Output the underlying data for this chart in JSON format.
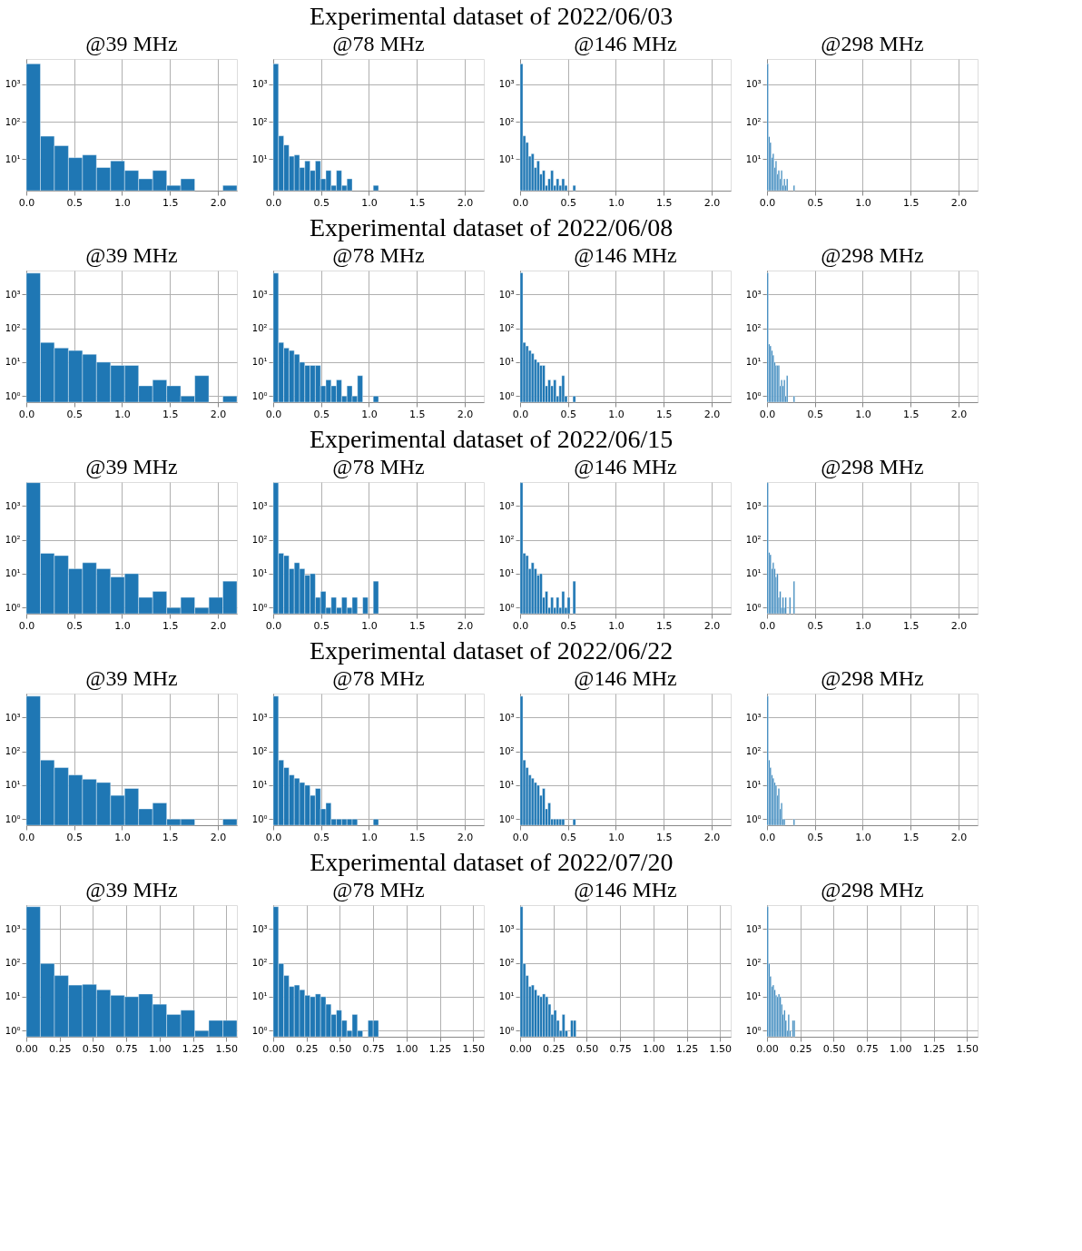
{
  "chart_data": [
    {
      "type": "histogram",
      "title": "@39 MHz",
      "annotations": [
        "Experimental dataset of 2022/06/03"
      ],
      "color": "#1f77b4",
      "log": true,
      "grid": true,
      "xlim": [
        0,
        2.2
      ],
      "ylim": [
        1.45,
        4700
      ],
      "xticks": [
        {
          "value": 0,
          "label": "0.0"
        },
        {
          "value": 0.5,
          "label": "0.5"
        },
        {
          "value": 1,
          "label": "1.0"
        },
        {
          "value": 1.5,
          "label": "1.5"
        },
        {
          "value": 2,
          "label": "2.0"
        }
      ],
      "yticks": [
        {
          "value": 10,
          "label": "10¹"
        },
        {
          "value": 100,
          "label": "10²"
        },
        {
          "value": 1000,
          "label": "10³"
        }
      ],
      "bins": [
        0,
        0.147,
        0.293,
        0.44,
        0.587,
        0.733,
        0.88,
        1.027,
        1.173,
        1.32,
        1.467,
        1.613,
        1.76,
        1.907,
        2.053,
        2.2
      ],
      "values": [
        3500,
        41,
        23,
        11,
        13,
        6,
        9,
        5,
        3,
        5,
        2,
        3,
        null,
        null,
        2
      ]
    },
    {
      "type": "histogram",
      "title": "@78 MHz",
      "color": "#1f77b4",
      "log": true,
      "grid": true,
      "xlim": [
        0,
        2.2
      ],
      "ylim": [
        1.45,
        4700
      ],
      "xticks": [
        {
          "value": 0,
          "label": "0.0"
        },
        {
          "value": 0.5,
          "label": "0.5"
        },
        {
          "value": 1,
          "label": "1.0"
        },
        {
          "value": 1.5,
          "label": "1.5"
        },
        {
          "value": 2,
          "label": "2.0"
        }
      ],
      "yticks": [
        {
          "value": 10,
          "label": "10¹"
        },
        {
          "value": 100,
          "label": "10²"
        },
        {
          "value": 1000,
          "label": "10³"
        }
      ],
      "bins": [
        0,
        0.055,
        0.11,
        0.165,
        0.22,
        0.275,
        0.33,
        0.385,
        0.44,
        0.495,
        0.55,
        0.605,
        0.66,
        0.715,
        0.77,
        0.825,
        0.88,
        0.935,
        0.99,
        1.045,
        1.1
      ],
      "values": [
        3500,
        42,
        24,
        12,
        13,
        6,
        9,
        5,
        9,
        3,
        5,
        2,
        5,
        2,
        3,
        null,
        null,
        null,
        null,
        2
      ]
    },
    {
      "type": "histogram",
      "title": "@146 MHz",
      "color": "#1f77b4",
      "log": true,
      "grid": true,
      "xlim": [
        0,
        2.2
      ],
      "ylim": [
        1.45,
        4700
      ],
      "xticks": [
        {
          "value": 0,
          "label": "0.0"
        },
        {
          "value": 0.5,
          "label": "0.5"
        },
        {
          "value": 1,
          "label": "1.0"
        },
        {
          "value": 1.5,
          "label": "1.5"
        },
        {
          "value": 2,
          "label": "2.0"
        }
      ],
      "yticks": [
        {
          "value": 10,
          "label": "10¹"
        },
        {
          "value": 100,
          "label": "10²"
        },
        {
          "value": 1000,
          "label": "10³"
        }
      ],
      "bins": [
        0,
        0.029,
        0.058,
        0.087,
        0.116,
        0.145,
        0.174,
        0.203,
        0.232,
        0.261,
        0.29,
        0.319,
        0.348,
        0.377,
        0.406,
        0.435,
        0.464,
        0.493,
        0.522,
        0.551,
        0.58
      ],
      "values": [
        3500,
        42,
        28,
        12,
        14,
        6,
        9,
        4,
        5,
        2,
        3,
        5,
        2,
        3,
        2,
        3,
        2,
        null,
        null,
        2
      ]
    },
    {
      "type": "histogram",
      "title": "@298 MHz",
      "color": "#1f77b4",
      "log": true,
      "grid": true,
      "xlim": [
        0,
        2.2
      ],
      "ylim": [
        1.45,
        4700
      ],
      "xticks": [
        {
          "value": 0,
          "label": "0.0"
        },
        {
          "value": 0.5,
          "label": "0.5"
        },
        {
          "value": 1,
          "label": "1.0"
        },
        {
          "value": 1.5,
          "label": "1.5"
        },
        {
          "value": 2,
          "label": "2.0"
        }
      ],
      "yticks": [
        {
          "value": 10,
          "label": "10¹"
        },
        {
          "value": 100,
          "label": "10²"
        },
        {
          "value": 1000,
          "label": "10³"
        }
      ],
      "bins": [
        0,
        0.0145,
        0.029,
        0.0435,
        0.058,
        0.0725,
        0.087,
        0.1015,
        0.116,
        0.1305,
        0.145,
        0.1595,
        0.174,
        0.1885,
        0.203,
        0.2175,
        0.232,
        0.2465,
        0.261,
        0.2755,
        0.29
      ],
      "values": [
        3500,
        40,
        28,
        11,
        14,
        6,
        9,
        4,
        5,
        3,
        5,
        2,
        3,
        2,
        3,
        null,
        null,
        null,
        null,
        2
      ]
    },
    {
      "type": "histogram",
      "title": "@39 MHz",
      "annotations": [
        "Experimental dataset of 2022/06/08"
      ],
      "color": "#1f77b4",
      "log": true,
      "grid": true,
      "xlim": [
        0,
        2.2
      ],
      "ylim": [
        0.66,
        5000
      ],
      "xticks": [
        {
          "value": 0,
          "label": "0.0"
        },
        {
          "value": 0.5,
          "label": "0.5"
        },
        {
          "value": 1,
          "label": "1.0"
        },
        {
          "value": 1.5,
          "label": "1.5"
        },
        {
          "value": 2,
          "label": "2.0"
        }
      ],
      "yticks": [
        {
          "value": 1,
          "label": "10⁰"
        },
        {
          "value": 10,
          "label": "10¹"
        },
        {
          "value": 100,
          "label": "10²"
        },
        {
          "value": 1000,
          "label": "10³"
        }
      ],
      "bins": [
        0,
        0.147,
        0.293,
        0.44,
        0.587,
        0.733,
        0.88,
        1.027,
        1.173,
        1.32,
        1.467,
        1.613,
        1.76,
        1.907,
        2.053,
        2.2
      ],
      "values": [
        4200,
        38,
        26,
        22,
        17,
        10,
        8,
        8,
        2,
        3,
        2,
        1,
        4,
        null,
        1
      ]
    },
    {
      "type": "histogram",
      "title": "@78 MHz",
      "color": "#1f77b4",
      "log": true,
      "grid": true,
      "xlim": [
        0,
        2.2
      ],
      "ylim": [
        0.66,
        5000
      ],
      "xticks": [
        {
          "value": 0,
          "label": "0.0"
        },
        {
          "value": 0.5,
          "label": "0.5"
        },
        {
          "value": 1,
          "label": "1.0"
        },
        {
          "value": 1.5,
          "label": "1.5"
        },
        {
          "value": 2,
          "label": "2.0"
        }
      ],
      "yticks": [
        {
          "value": 1,
          "label": "10⁰"
        },
        {
          "value": 10,
          "label": "10¹"
        },
        {
          "value": 100,
          "label": "10²"
        },
        {
          "value": 1000,
          "label": "10³"
        }
      ],
      "bins": [
        0,
        0.055,
        0.11,
        0.165,
        0.22,
        0.275,
        0.33,
        0.385,
        0.44,
        0.495,
        0.55,
        0.605,
        0.66,
        0.715,
        0.77,
        0.825,
        0.88,
        0.935,
        0.99,
        1.045,
        1.1
      ],
      "values": [
        4200,
        38,
        26,
        22,
        17,
        10,
        8,
        8,
        8,
        2,
        3,
        2,
        3,
        1,
        2,
        1,
        4,
        null,
        null,
        1
      ]
    },
    {
      "type": "histogram",
      "title": "@146 MHz",
      "color": "#1f77b4",
      "log": true,
      "grid": true,
      "xlim": [
        0,
        2.2
      ],
      "ylim": [
        0.66,
        5000
      ],
      "xticks": [
        {
          "value": 0,
          "label": "0.0"
        },
        {
          "value": 0.5,
          "label": "0.5"
        },
        {
          "value": 1,
          "label": "1.0"
        },
        {
          "value": 1.5,
          "label": "1.5"
        },
        {
          "value": 2,
          "label": "2.0"
        }
      ],
      "yticks": [
        {
          "value": 1,
          "label": "10⁰"
        },
        {
          "value": 10,
          "label": "10¹"
        },
        {
          "value": 100,
          "label": "10²"
        },
        {
          "value": 1000,
          "label": "10³"
        }
      ],
      "bins": [
        0,
        0.029,
        0.058,
        0.087,
        0.116,
        0.145,
        0.174,
        0.203,
        0.232,
        0.261,
        0.29,
        0.319,
        0.348,
        0.377,
        0.406,
        0.435,
        0.464,
        0.493,
        0.522,
        0.551,
        0.58
      ],
      "values": [
        4300,
        38,
        30,
        22,
        18,
        12,
        10,
        8,
        8,
        2,
        3,
        2,
        3,
        1,
        2,
        4,
        1,
        null,
        null,
        1
      ]
    },
    {
      "type": "histogram",
      "title": "@298 MHz",
      "color": "#1f77b4",
      "log": true,
      "grid": true,
      "xlim": [
        0,
        2.2
      ],
      "ylim": [
        0.66,
        5000
      ],
      "xticks": [
        {
          "value": 0,
          "label": "0.0"
        },
        {
          "value": 0.5,
          "label": "0.5"
        },
        {
          "value": 1,
          "label": "1.0"
        },
        {
          "value": 1.5,
          "label": "1.5"
        },
        {
          "value": 2,
          "label": "2.0"
        }
      ],
      "yticks": [
        {
          "value": 1,
          "label": "10⁰"
        },
        {
          "value": 10,
          "label": "10¹"
        },
        {
          "value": 100,
          "label": "10²"
        },
        {
          "value": 1000,
          "label": "10³"
        }
      ],
      "bins": [
        0,
        0.0145,
        0.029,
        0.0435,
        0.058,
        0.0725,
        0.087,
        0.1015,
        0.116,
        0.1305,
        0.145,
        0.1595,
        0.174,
        0.1885,
        0.203,
        0.2175,
        0.232,
        0.2465,
        0.261,
        0.2755,
        0.29
      ],
      "values": [
        4300,
        34,
        30,
        22,
        16,
        10,
        8,
        8,
        8,
        2,
        3,
        2,
        3,
        1,
        4,
        null,
        null,
        null,
        null,
        1
      ]
    },
    {
      "type": "histogram",
      "title": "@39 MHz",
      "annotations": [
        "Experimental dataset of 2022/06/15"
      ],
      "color": "#1f77b4",
      "log": true,
      "grid": true,
      "xlim": [
        0,
        2.2
      ],
      "ylim": [
        0.66,
        5000
      ],
      "xticks": [
        {
          "value": 0,
          "label": "0.0"
        },
        {
          "value": 0.5,
          "label": "0.5"
        },
        {
          "value": 1,
          "label": "1.0"
        },
        {
          "value": 1.5,
          "label": "1.5"
        },
        {
          "value": 2,
          "label": "2.0"
        }
      ],
      "yticks": [
        {
          "value": 1,
          "label": "10⁰"
        },
        {
          "value": 10,
          "label": "10¹"
        },
        {
          "value": 100,
          "label": "10²"
        },
        {
          "value": 1000,
          "label": "10³"
        }
      ],
      "bins": [
        0,
        0.147,
        0.293,
        0.44,
        0.587,
        0.733,
        0.88,
        1.027,
        1.173,
        1.32,
        1.467,
        1.613,
        1.76,
        1.907,
        2.053,
        2.2
      ],
      "values": [
        4800,
        40,
        34,
        14,
        21,
        14,
        8,
        10,
        2,
        3,
        1,
        2,
        1,
        2,
        6
      ]
    },
    {
      "type": "histogram",
      "title": "@78 MHz",
      "color": "#1f77b4",
      "log": true,
      "grid": true,
      "xlim": [
        0,
        2.2
      ],
      "ylim": [
        0.66,
        5000
      ],
      "xticks": [
        {
          "value": 0,
          "label": "0.0"
        },
        {
          "value": 0.5,
          "label": "0.5"
        },
        {
          "value": 1,
          "label": "1.0"
        },
        {
          "value": 1.5,
          "label": "1.5"
        },
        {
          "value": 2,
          "label": "2.0"
        }
      ],
      "yticks": [
        {
          "value": 1,
          "label": "10⁰"
        },
        {
          "value": 10,
          "label": "10¹"
        },
        {
          "value": 100,
          "label": "10²"
        },
        {
          "value": 1000,
          "label": "10³"
        }
      ],
      "bins": [
        0,
        0.055,
        0.11,
        0.165,
        0.22,
        0.275,
        0.33,
        0.385,
        0.44,
        0.495,
        0.55,
        0.605,
        0.66,
        0.715,
        0.77,
        0.825,
        0.88,
        0.935,
        0.99,
        1.045,
        1.1
      ],
      "values": [
        4800,
        40,
        34,
        14,
        21,
        14,
        9,
        10,
        2,
        3,
        1,
        2,
        1,
        2,
        1,
        2,
        null,
        2,
        null,
        6
      ]
    },
    {
      "type": "histogram",
      "title": "@146 MHz",
      "color": "#1f77b4",
      "log": true,
      "grid": true,
      "xlim": [
        0,
        2.2
      ],
      "ylim": [
        0.66,
        5000
      ],
      "xticks": [
        {
          "value": 0,
          "label": "0.0"
        },
        {
          "value": 0.5,
          "label": "0.5"
        },
        {
          "value": 1,
          "label": "1.0"
        },
        {
          "value": 1.5,
          "label": "1.5"
        },
        {
          "value": 2,
          "label": "2.0"
        }
      ],
      "yticks": [
        {
          "value": 1,
          "label": "10⁰"
        },
        {
          "value": 10,
          "label": "10¹"
        },
        {
          "value": 100,
          "label": "10²"
        },
        {
          "value": 1000,
          "label": "10³"
        }
      ],
      "bins": [
        0,
        0.029,
        0.058,
        0.087,
        0.116,
        0.145,
        0.174,
        0.203,
        0.232,
        0.261,
        0.29,
        0.319,
        0.348,
        0.377,
        0.406,
        0.435,
        0.464,
        0.493,
        0.522,
        0.551,
        0.58
      ],
      "values": [
        4800,
        40,
        34,
        14,
        21,
        14,
        9,
        10,
        2,
        3,
        1,
        2,
        1,
        2,
        1,
        3,
        1,
        2,
        null,
        6
      ]
    },
    {
      "type": "histogram",
      "title": "@298 MHz",
      "color": "#1f77b4",
      "log": true,
      "grid": true,
      "xlim": [
        0,
        2.2
      ],
      "ylim": [
        0.66,
        5000
      ],
      "xticks": [
        {
          "value": 0,
          "label": "0.0"
        },
        {
          "value": 0.5,
          "label": "0.5"
        },
        {
          "value": 1,
          "label": "1.0"
        },
        {
          "value": 1.5,
          "label": "1.5"
        },
        {
          "value": 2,
          "label": "2.0"
        }
      ],
      "yticks": [
        {
          "value": 1,
          "label": "10⁰"
        },
        {
          "value": 10,
          "label": "10¹"
        },
        {
          "value": 100,
          "label": "10²"
        },
        {
          "value": 1000,
          "label": "10³"
        }
      ],
      "bins": [
        0,
        0.0145,
        0.029,
        0.0435,
        0.058,
        0.0725,
        0.087,
        0.1015,
        0.116,
        0.1305,
        0.145,
        0.1595,
        0.174,
        0.1885,
        0.203,
        0.2175,
        0.232,
        0.2465,
        0.261,
        0.2755,
        0.29
      ],
      "values": [
        4800,
        42,
        36,
        14,
        21,
        14,
        8,
        10,
        2,
        3,
        1,
        2,
        1,
        2,
        null,
        null,
        2,
        null,
        null,
        6
      ]
    },
    {
      "type": "histogram",
      "title": "@39 MHz",
      "annotations": [
        "Experimental dataset of 2022/06/22"
      ],
      "color": "#1f77b4",
      "log": true,
      "grid": true,
      "xlim": [
        0,
        2.2
      ],
      "ylim": [
        0.66,
        5000
      ],
      "xticks": [
        {
          "value": 0,
          "label": "0.0"
        },
        {
          "value": 0.5,
          "label": "0.5"
        },
        {
          "value": 1,
          "label": "1.0"
        },
        {
          "value": 1.5,
          "label": "1.5"
        },
        {
          "value": 2,
          "label": "2.0"
        }
      ],
      "yticks": [
        {
          "value": 1,
          "label": "10⁰"
        },
        {
          "value": 10,
          "label": "10¹"
        },
        {
          "value": 100,
          "label": "10²"
        },
        {
          "value": 1000,
          "label": "10³"
        }
      ],
      "bins": [
        0,
        0.147,
        0.293,
        0.44,
        0.587,
        0.733,
        0.88,
        1.027,
        1.173,
        1.32,
        1.467,
        1.613,
        1.76,
        1.907,
        2.053,
        2.2
      ],
      "values": [
        4200,
        55,
        33,
        20,
        15,
        12,
        5,
        8,
        2,
        3,
        1,
        1,
        null,
        null,
        1
      ]
    },
    {
      "type": "histogram",
      "title": "@78 MHz",
      "color": "#1f77b4",
      "log": true,
      "grid": true,
      "xlim": [
        0,
        2.2
      ],
      "ylim": [
        0.66,
        5000
      ],
      "xticks": [
        {
          "value": 0,
          "label": "0.0"
        },
        {
          "value": 0.5,
          "label": "0.5"
        },
        {
          "value": 1,
          "label": "1.0"
        },
        {
          "value": 1.5,
          "label": "1.5"
        },
        {
          "value": 2,
          "label": "2.0"
        }
      ],
      "yticks": [
        {
          "value": 1,
          "label": "10⁰"
        },
        {
          "value": 10,
          "label": "10¹"
        },
        {
          "value": 100,
          "label": "10²"
        },
        {
          "value": 1000,
          "label": "10³"
        }
      ],
      "bins": [
        0,
        0.055,
        0.11,
        0.165,
        0.22,
        0.275,
        0.33,
        0.385,
        0.44,
        0.495,
        0.55,
        0.605,
        0.66,
        0.715,
        0.77,
        0.825,
        0.88,
        0.935,
        0.99,
        1.045,
        1.1
      ],
      "values": [
        4200,
        55,
        33,
        20,
        16,
        12,
        10,
        5,
        8,
        2,
        3,
        1,
        1,
        1,
        1,
        1,
        null,
        null,
        null,
        1
      ]
    },
    {
      "type": "histogram",
      "title": "@146 MHz",
      "color": "#1f77b4",
      "log": true,
      "grid": true,
      "xlim": [
        0,
        2.2
      ],
      "ylim": [
        0.66,
        5000
      ],
      "xticks": [
        {
          "value": 0,
          "label": "0.0"
        },
        {
          "value": 0.5,
          "label": "0.5"
        },
        {
          "value": 1,
          "label": "1.0"
        },
        {
          "value": 1.5,
          "label": "1.5"
        },
        {
          "value": 2,
          "label": "2.0"
        }
      ],
      "yticks": [
        {
          "value": 1,
          "label": "10⁰"
        },
        {
          "value": 10,
          "label": "10¹"
        },
        {
          "value": 100,
          "label": "10²"
        },
        {
          "value": 1000,
          "label": "10³"
        }
      ],
      "bins": [
        0,
        0.029,
        0.058,
        0.087,
        0.116,
        0.145,
        0.174,
        0.203,
        0.232,
        0.261,
        0.29,
        0.319,
        0.348,
        0.377,
        0.406,
        0.435,
        0.464,
        0.493,
        0.522,
        0.551,
        0.58
      ],
      "values": [
        4200,
        55,
        33,
        20,
        16,
        12,
        10,
        5,
        8,
        2,
        3,
        1,
        1,
        1,
        1,
        1,
        null,
        null,
        null,
        1
      ]
    },
    {
      "type": "histogram",
      "title": "@298 MHz",
      "color": "#1f77b4",
      "log": true,
      "grid": true,
      "xlim": [
        0,
        2.2
      ],
      "ylim": [
        0.66,
        5000
      ],
      "xticks": [
        {
          "value": 0,
          "label": "0.0"
        },
        {
          "value": 0.5,
          "label": "0.5"
        },
        {
          "value": 1,
          "label": "1.0"
        },
        {
          "value": 1.5,
          "label": "1.5"
        },
        {
          "value": 2,
          "label": "2.0"
        }
      ],
      "yticks": [
        {
          "value": 1,
          "label": "10⁰"
        },
        {
          "value": 10,
          "label": "10¹"
        },
        {
          "value": 100,
          "label": "10²"
        },
        {
          "value": 1000,
          "label": "10³"
        }
      ],
      "bins": [
        0,
        0.0145,
        0.029,
        0.0435,
        0.058,
        0.0725,
        0.087,
        0.1015,
        0.116,
        0.1305,
        0.145,
        0.1595,
        0.174,
        0.1885,
        0.203,
        0.2175,
        0.232,
        0.2465,
        0.261,
        0.2755,
        0.29
      ],
      "values": [
        4200,
        55,
        33,
        20,
        16,
        12,
        10,
        5,
        8,
        2,
        3,
        1,
        1,
        null,
        null,
        null,
        null,
        null,
        null,
        1
      ]
    },
    {
      "type": "histogram",
      "title": "@39 MHz",
      "annotations": [
        "Experimental dataset of 2022/07/20"
      ],
      "color": "#1f77b4",
      "log": true,
      "grid": true,
      "xlim": [
        0,
        1.58
      ],
      "ylim": [
        0.66,
        5000
      ],
      "xticks": [
        {
          "value": 0,
          "label": "0.00"
        },
        {
          "value": 0.25,
          "label": "0.25"
        },
        {
          "value": 0.5,
          "label": "0.50"
        },
        {
          "value": 0.75,
          "label": "0.75"
        },
        {
          "value": 1,
          "label": "1.00"
        },
        {
          "value": 1.25,
          "label": "1.25"
        },
        {
          "value": 1.5,
          "label": "1.50"
        }
      ],
      "yticks": [
        {
          "value": 1,
          "label": "10⁰"
        },
        {
          "value": 10,
          "label": "10¹"
        },
        {
          "value": 100,
          "label": "10²"
        },
        {
          "value": 1000,
          "label": "10³"
        }
      ],
      "bins": [
        0,
        0.105,
        0.211,
        0.316,
        0.421,
        0.527,
        0.632,
        0.737,
        0.843,
        0.948,
        1.053,
        1.159,
        1.264,
        1.369,
        1.475,
        1.58
      ],
      "values": [
        4500,
        95,
        42,
        22,
        23,
        16,
        11,
        10,
        12,
        6,
        3,
        4,
        1,
        2,
        2
      ]
    },
    {
      "type": "histogram",
      "title": "@78 MHz",
      "color": "#1f77b4",
      "log": true,
      "grid": true,
      "xlim": [
        0,
        1.58
      ],
      "ylim": [
        0.66,
        5000
      ],
      "xticks": [
        {
          "value": 0,
          "label": "0.00"
        },
        {
          "value": 0.25,
          "label": "0.25"
        },
        {
          "value": 0.5,
          "label": "0.50"
        },
        {
          "value": 0.75,
          "label": "0.75"
        },
        {
          "value": 1,
          "label": "1.00"
        },
        {
          "value": 1.25,
          "label": "1.25"
        },
        {
          "value": 1.5,
          "label": "1.50"
        }
      ],
      "yticks": [
        {
          "value": 1,
          "label": "10⁰"
        },
        {
          "value": 10,
          "label": "10¹"
        },
        {
          "value": 100,
          "label": "10²"
        },
        {
          "value": 1000,
          "label": "10³"
        }
      ],
      "bins": [
        0,
        0.0395,
        0.079,
        0.1185,
        0.158,
        0.1975,
        0.237,
        0.2765,
        0.316,
        0.3555,
        0.395,
        0.4345,
        0.474,
        0.5135,
        0.553,
        0.5925,
        0.632,
        0.6715,
        0.711,
        0.7505,
        0.79
      ],
      "values": [
        4500,
        95,
        42,
        20,
        22,
        16,
        11,
        10,
        12,
        10,
        6,
        3,
        4,
        2,
        1,
        3,
        1,
        null,
        2,
        2
      ]
    },
    {
      "type": "histogram",
      "title": "@146 MHz",
      "color": "#1f77b4",
      "log": true,
      "grid": true,
      "xlim": [
        0,
        1.58
      ],
      "ylim": [
        0.66,
        5000
      ],
      "xticks": [
        {
          "value": 0,
          "label": "0.00"
        },
        {
          "value": 0.25,
          "label": "0.25"
        },
        {
          "value": 0.5,
          "label": "0.50"
        },
        {
          "value": 0.75,
          "label": "0.75"
        },
        {
          "value": 1,
          "label": "1.00"
        },
        {
          "value": 1.25,
          "label": "1.25"
        },
        {
          "value": 1.5,
          "label": "1.50"
        }
      ],
      "yticks": [
        {
          "value": 1,
          "label": "10⁰"
        },
        {
          "value": 10,
          "label": "10¹"
        },
        {
          "value": 100,
          "label": "10²"
        },
        {
          "value": 1000,
          "label": "10³"
        }
      ],
      "bins": [
        0,
        0.021,
        0.042,
        0.063,
        0.084,
        0.105,
        0.126,
        0.147,
        0.168,
        0.189,
        0.21,
        0.231,
        0.252,
        0.273,
        0.294,
        0.315,
        0.336,
        0.357,
        0.378,
        0.399,
        0.42
      ],
      "values": [
        4500,
        95,
        42,
        20,
        22,
        16,
        11,
        10,
        12,
        10,
        6,
        3,
        4,
        2,
        1,
        3,
        1,
        null,
        2,
        2
      ]
    },
    {
      "type": "histogram",
      "title": "@298 MHz",
      "color": "#1f77b4",
      "log": true,
      "grid": true,
      "xlim": [
        0,
        1.58
      ],
      "ylim": [
        0.66,
        5000
      ],
      "xticks": [
        {
          "value": 0,
          "label": "0.00"
        },
        {
          "value": 0.25,
          "label": "0.25"
        },
        {
          "value": 0.5,
          "label": "0.50"
        },
        {
          "value": 0.75,
          "label": "0.75"
        },
        {
          "value": 1,
          "label": "1.00"
        },
        {
          "value": 1.25,
          "label": "1.25"
        },
        {
          "value": 1.5,
          "label": "1.50"
        }
      ],
      "yticks": [
        {
          "value": 1,
          "label": "10⁰"
        },
        {
          "value": 10,
          "label": "10¹"
        },
        {
          "value": 100,
          "label": "10²"
        },
        {
          "value": 1000,
          "label": "10³"
        }
      ],
      "bins": [
        0,
        0.0105,
        0.021,
        0.0315,
        0.042,
        0.0525,
        0.063,
        0.0735,
        0.084,
        0.0945,
        0.105,
        0.1155,
        0.126,
        0.1365,
        0.147,
        0.1575,
        0.168,
        0.1785,
        0.189,
        0.1995,
        0.21
      ],
      "values": [
        4500,
        95,
        40,
        20,
        22,
        16,
        11,
        10,
        12,
        10,
        6,
        3,
        4,
        2,
        1,
        3,
        1,
        null,
        2,
        2
      ]
    }
  ]
}
